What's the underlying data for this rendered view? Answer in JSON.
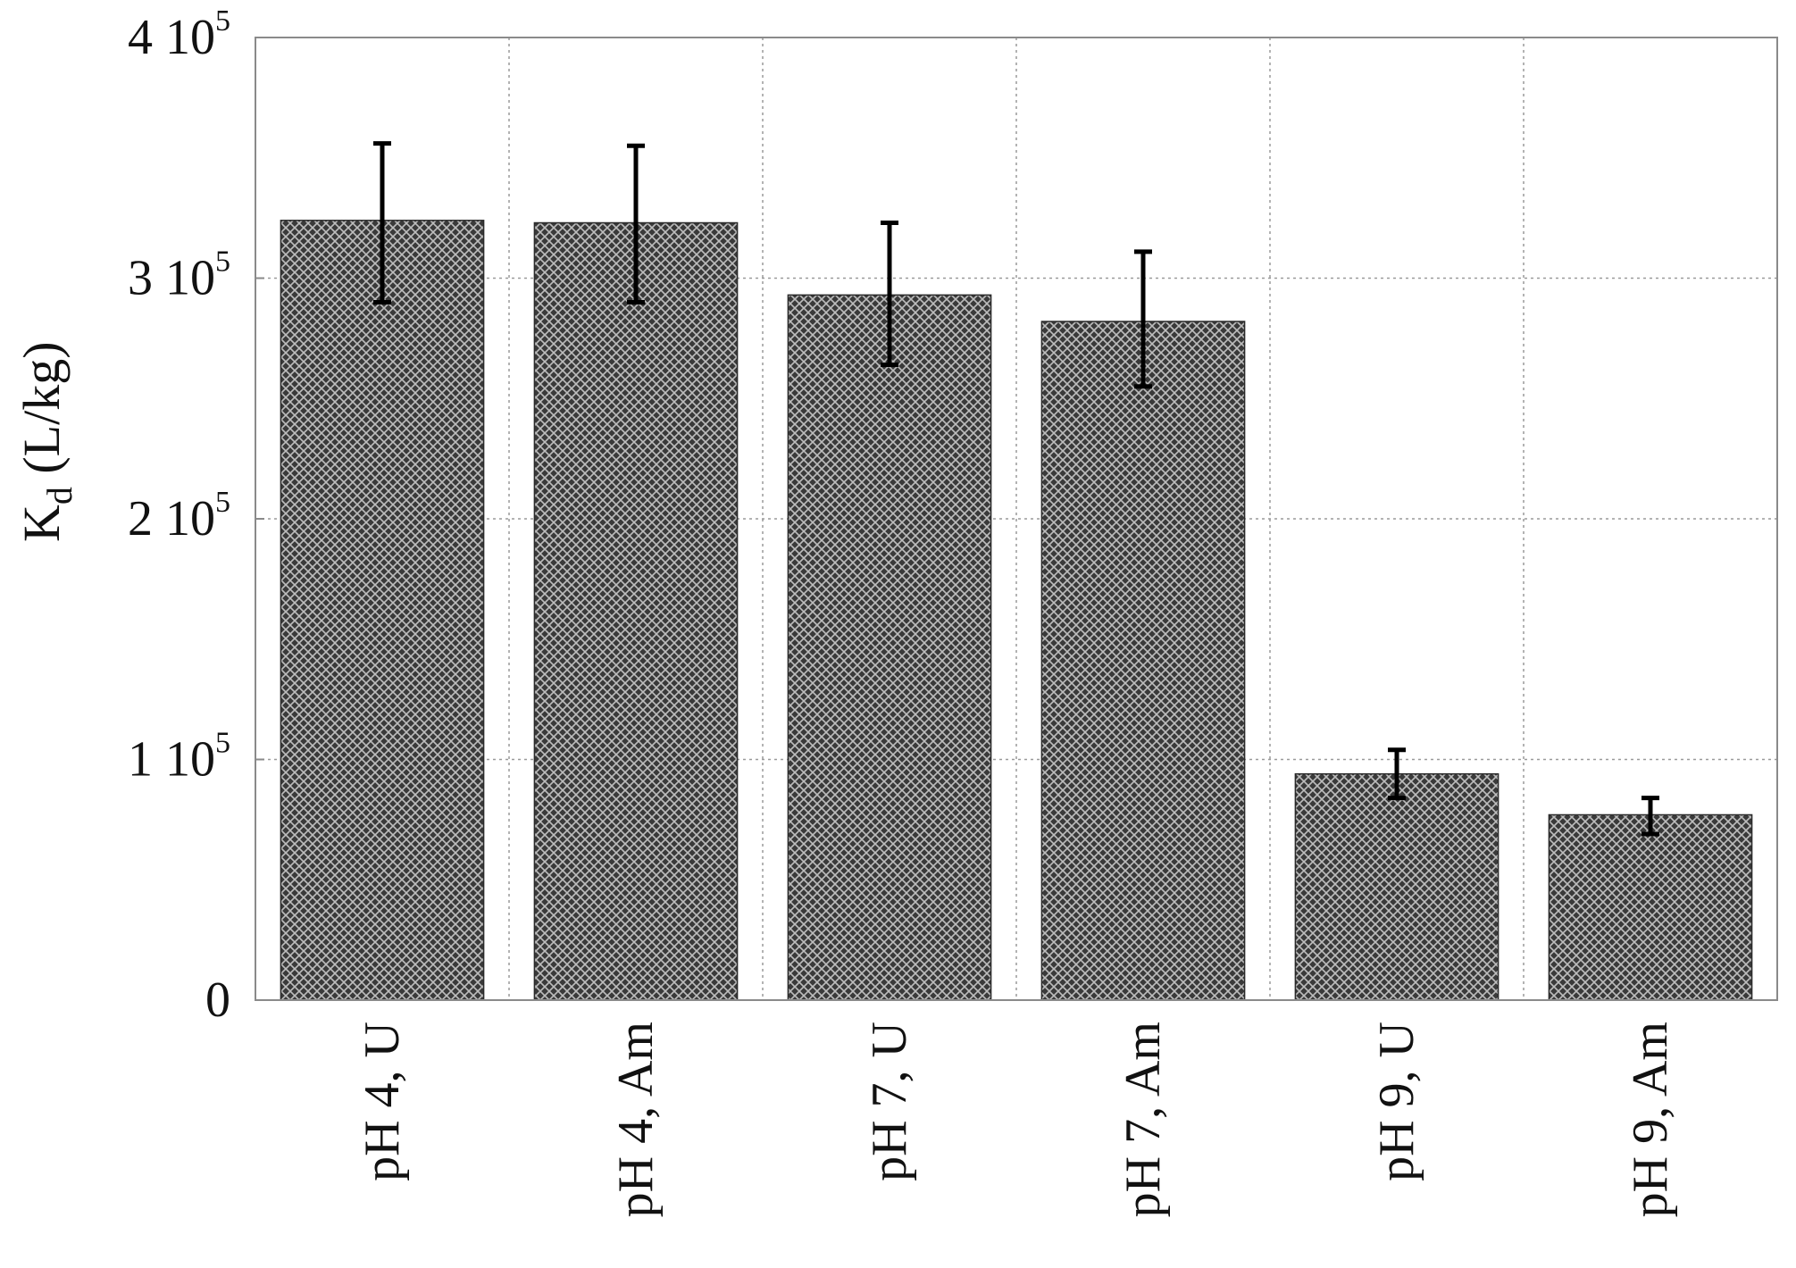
{
  "chart_data": {
    "type": "bar",
    "title": "",
    "xlabel": "",
    "ylabel": "K",
    "ylabel_subscript": "d",
    "ylabel_suffix": " (L/kg)",
    "categories": [
      "pH 4, U",
      "pH 4, Am",
      "pH 7, U",
      "pH 7, Am",
      "pH 9, U",
      "pH 9, Am"
    ],
    "values": [
      324000,
      323000,
      293000,
      282000,
      94000,
      77000
    ],
    "error_low": [
      290000,
      290000,
      264000,
      255000,
      84000,
      69000
    ],
    "error_high": [
      356000,
      355000,
      323000,
      311000,
      104000,
      84000
    ],
    "ylim": [
      0,
      400000
    ],
    "yticks": [
      {
        "value": 0,
        "mantissa": "0",
        "exponent": ""
      },
      {
        "value": 100000,
        "mantissa": "1 10",
        "exponent": "5"
      },
      {
        "value": 200000,
        "mantissa": "2 10",
        "exponent": "5"
      },
      {
        "value": 300000,
        "mantissa": "3 10",
        "exponent": "5"
      },
      {
        "value": 400000,
        "mantissa": "4 10",
        "exponent": "5"
      }
    ],
    "grid": true,
    "legend": "none",
    "bar_color": "#3a3a3a",
    "bar_pattern_color": "#bdbdbd"
  }
}
